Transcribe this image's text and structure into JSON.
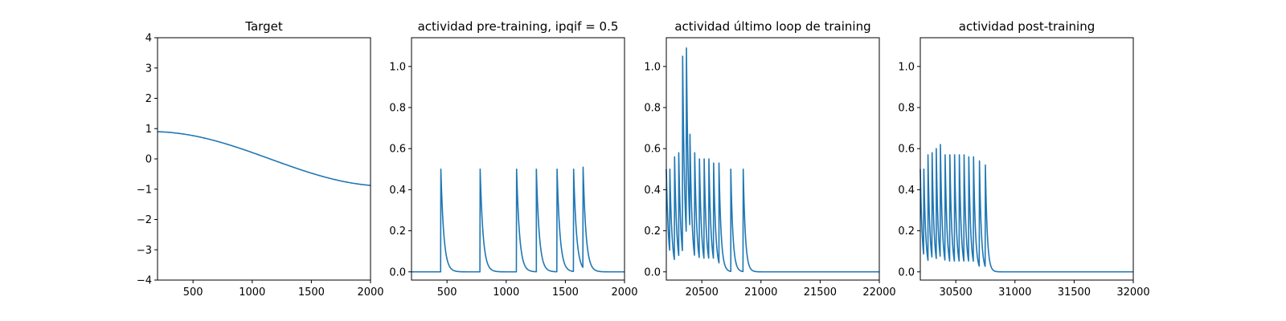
{
  "chart_data": [
    {
      "type": "line",
      "title": "Target",
      "xlabel": "",
      "ylabel": "",
      "xlim": [
        200,
        2000
      ],
      "ylim": [
        -4,
        4
      ],
      "xticks": [
        500,
        1000,
        1500,
        2000
      ],
      "yticks": [
        -4,
        -3,
        -2,
        -1,
        0,
        1,
        2,
        3,
        4
      ],
      "grid": false,
      "series": [
        {
          "color": "#1f77b4",
          "kind": "cosine",
          "x": [
            200,
            400,
            600,
            800,
            1000,
            1200,
            1400,
            1600,
            1800,
            2000
          ],
          "y": [
            0.9,
            0.72,
            0.5,
            0.2,
            -0.1,
            -0.4,
            -0.66,
            -0.85,
            -0.96,
            -0.98
          ]
        }
      ]
    },
    {
      "type": "line",
      "title": "actividad pre-training, ipqif = 0.5",
      "xlabel": "",
      "ylabel": "",
      "xlim": [
        200,
        2000
      ],
      "ylim": [
        -0.04,
        1.14
      ],
      "xticks": [
        500,
        1000,
        1500,
        2000
      ],
      "yticks": [
        0.0,
        0.2,
        0.4,
        0.6,
        0.8,
        1.0
      ],
      "ytick_labels": [
        "0.0",
        "0.2",
        "0.4",
        "0.6",
        "0.8",
        "1.0"
      ],
      "grid": false,
      "series": [
        {
          "color": "#1f77b4",
          "kind": "spikes",
          "baseline": 0.0,
          "tau": 25,
          "spike_times": [
            448,
            780,
            1088,
            1255,
            1430,
            1570,
            1650
          ],
          "spike_peaks": [
            0.5,
            0.5,
            0.5,
            0.5,
            0.5,
            0.5,
            0.51
          ]
        }
      ]
    },
    {
      "type": "line",
      "title": "actividad último loop de training",
      "xlabel": "",
      "ylabel": "",
      "xlim": [
        20200,
        22000
      ],
      "ylim": [
        -0.04,
        1.14
      ],
      "xticks": [
        20500,
        21000,
        21500,
        22000
      ],
      "yticks": [
        0.0,
        0.2,
        0.4,
        0.6,
        0.8,
        1.0
      ],
      "ytick_labels": [
        "0.0",
        "0.2",
        "0.4",
        "0.6",
        "0.8",
        "1.0"
      ],
      "grid": false,
      "series": [
        {
          "color": "#1f77b4",
          "kind": "spikes",
          "baseline": 0.0,
          "tau": 18,
          "start_value": 0.5,
          "spike_times": [
            20230,
            20270,
            20305,
            20338,
            20370,
            20400,
            20440,
            20480,
            20520,
            20560,
            20600,
            20645,
            20745,
            20850
          ],
          "spike_peaks": [
            0.5,
            0.56,
            0.58,
            1.05,
            1.09,
            0.67,
            0.58,
            0.55,
            0.55,
            0.55,
            0.53,
            0.53,
            0.5,
            0.5
          ]
        }
      ]
    },
    {
      "type": "line",
      "title": "actividad post-training",
      "xlabel": "",
      "ylabel": "",
      "xlim": [
        30200,
        32000
      ],
      "ylim": [
        -0.04,
        1.14
      ],
      "xticks": [
        30500,
        31000,
        31500,
        32000
      ],
      "yticks": [
        0.0,
        0.2,
        0.4,
        0.6,
        0.8,
        1.0
      ],
      "ytick_labels": [
        "0.0",
        "0.2",
        "0.4",
        "0.6",
        "0.8",
        "1.0"
      ],
      "grid": false,
      "series": [
        {
          "color": "#1f77b4",
          "kind": "spikes",
          "baseline": 0.0,
          "tau": 16,
          "start_value": 0.5,
          "spike_times": [
            30230,
            30265,
            30300,
            30335,
            30370,
            30410,
            30450,
            30490,
            30530,
            30570,
            30610,
            30650,
            30700,
            30750
          ],
          "spike_peaks": [
            0.5,
            0.57,
            0.58,
            0.6,
            0.62,
            0.57,
            0.57,
            0.57,
            0.57,
            0.57,
            0.56,
            0.56,
            0.54,
            0.52
          ]
        }
      ]
    }
  ]
}
